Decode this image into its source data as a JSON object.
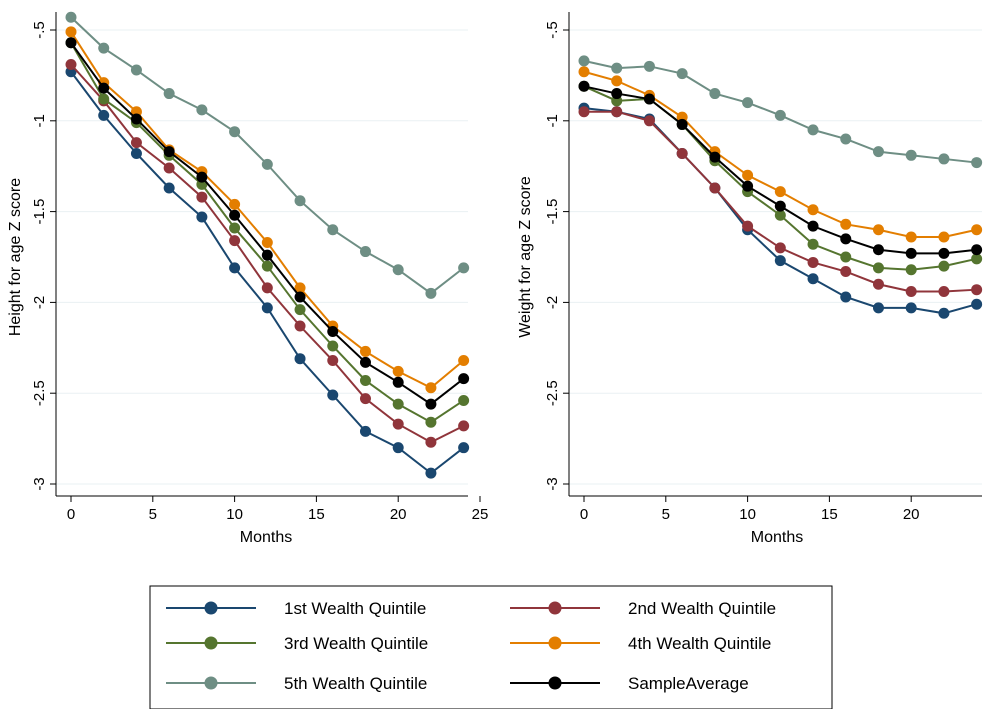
{
  "chart_data": [
    {
      "type": "line",
      "xlabel": "Months",
      "ylabel": "Height for age Z score",
      "xlim": [
        0,
        25
      ],
      "ylim": [
        -3,
        -0.5
      ],
      "xticks": [
        "0",
        "5",
        "10",
        "15",
        "20",
        "25"
      ],
      "yticks": [
        "-.5",
        "-1",
        "-1.5",
        "-2",
        "-2.5",
        "-3"
      ],
      "grid": true,
      "x": [
        0,
        2,
        4,
        6,
        8,
        10,
        12,
        14,
        16,
        18,
        20,
        22,
        24
      ],
      "series": [
        {
          "name": "1st Wealth Quintile",
          "color": "#1a476f",
          "values": [
            -0.73,
            -0.97,
            -1.18,
            -1.37,
            -1.53,
            -1.81,
            -2.03,
            -2.31,
            -2.51,
            -2.71,
            -2.8,
            -2.94,
            -2.8
          ]
        },
        {
          "name": "2nd Wealth Quintile",
          "color": "#90353b",
          "values": [
            -0.69,
            -0.89,
            -1.12,
            -1.26,
            -1.42,
            -1.66,
            -1.92,
            -2.13,
            -2.32,
            -2.53,
            -2.67,
            -2.77,
            -2.68
          ]
        },
        {
          "name": "3rd Wealth Quintile",
          "color": "#55752f",
          "values": [
            -0.57,
            -0.88,
            -1.01,
            -1.19,
            -1.35,
            -1.59,
            -1.8,
            -2.04,
            -2.24,
            -2.43,
            -2.56,
            -2.66,
            -2.54
          ]
        },
        {
          "name": "4th Wealth Quintile",
          "color": "#e37e00",
          "values": [
            -0.51,
            -0.79,
            -0.95,
            -1.16,
            -1.28,
            -1.46,
            -1.67,
            -1.92,
            -2.13,
            -2.27,
            -2.38,
            -2.47,
            -2.32
          ]
        },
        {
          "name": "5th Wealth Quintile",
          "color": "#6e8e84",
          "values": [
            -0.43,
            -0.6,
            -0.72,
            -0.85,
            -0.94,
            -1.06,
            -1.24,
            -1.44,
            -1.6,
            -1.72,
            -1.82,
            -1.95,
            -1.81
          ]
        },
        {
          "name": "SampleAverage",
          "color": "#000000",
          "values": [
            -0.57,
            -0.82,
            -0.99,
            -1.17,
            -1.31,
            -1.52,
            -1.74,
            -1.97,
            -2.16,
            -2.33,
            -2.44,
            -2.56,
            -2.42
          ]
        }
      ]
    },
    {
      "type": "line",
      "xlabel": "Months",
      "ylabel": "Weight for age Z score",
      "xlim": [
        0,
        25
      ],
      "ylim": [
        -3,
        -0.5
      ],
      "xticks": [
        "0",
        "5",
        "10",
        "15",
        "20",
        "25"
      ],
      "yticks": [
        "-.5",
        "-1",
        "-1.5",
        "-2",
        "-2.5",
        "-3"
      ],
      "grid": true,
      "x": [
        0,
        2,
        4,
        6,
        8,
        10,
        12,
        14,
        16,
        18,
        20,
        22,
        24
      ],
      "series": [
        {
          "name": "1st Wealth Quintile",
          "color": "#1a476f",
          "values": [
            -0.93,
            -0.95,
            -0.99,
            -1.18,
            -1.37,
            -1.6,
            -1.77,
            -1.87,
            -1.97,
            -2.03,
            -2.03,
            -2.06,
            -2.01
          ]
        },
        {
          "name": "2nd Wealth Quintile",
          "color": "#90353b",
          "values": [
            -0.95,
            -0.95,
            -1.0,
            -1.18,
            -1.37,
            -1.58,
            -1.7,
            -1.78,
            -1.83,
            -1.9,
            -1.94,
            -1.94,
            -1.93
          ]
        },
        {
          "name": "3rd Wealth Quintile",
          "color": "#55752f",
          "values": [
            -0.81,
            -0.89,
            -0.88,
            -1.02,
            -1.22,
            -1.39,
            -1.52,
            -1.68,
            -1.75,
            -1.81,
            -1.82,
            -1.8,
            -1.76
          ]
        },
        {
          "name": "4th Wealth Quintile",
          "color": "#e37e00",
          "values": [
            -0.73,
            -0.78,
            -0.86,
            -0.98,
            -1.17,
            -1.3,
            -1.39,
            -1.49,
            -1.57,
            -1.6,
            -1.64,
            -1.64,
            -1.6
          ]
        },
        {
          "name": "5th Wealth Quintile",
          "color": "#6e8e84",
          "values": [
            -0.67,
            -0.71,
            -0.7,
            -0.74,
            -0.85,
            -0.9,
            -0.97,
            -1.05,
            -1.1,
            -1.17,
            -1.19,
            -1.21,
            -1.23
          ]
        },
        {
          "name": "SampleAverage",
          "color": "#000000",
          "values": [
            -0.81,
            -0.85,
            -0.88,
            -1.02,
            -1.2,
            -1.36,
            -1.47,
            -1.58,
            -1.65,
            -1.71,
            -1.73,
            -1.73,
            -1.71
          ]
        }
      ]
    }
  ],
  "legend": {
    "placement": "bottom-center",
    "columns": 2,
    "items": [
      {
        "label": "1st Wealth Quintile",
        "color": "#1a476f"
      },
      {
        "label": "2nd Wealth Quintile",
        "color": "#90353b"
      },
      {
        "label": "3rd Wealth Quintile",
        "color": "#55752f"
      },
      {
        "label": "4th Wealth Quintile",
        "color": "#e37e00"
      },
      {
        "label": "5th Wealth Quintile",
        "color": "#6e8e84"
      },
      {
        "label": "SampleAverage",
        "color": "#000000"
      }
    ]
  }
}
